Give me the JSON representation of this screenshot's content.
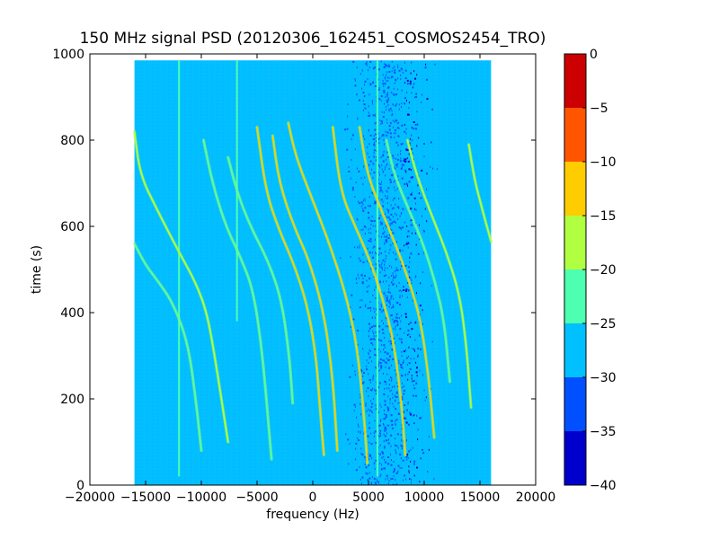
{
  "chart_data": {
    "type": "heatmap",
    "title": "150 MHz signal PSD (20120306_162451_COSMOS2454_TRO)",
    "xlabel": "frequency (Hz)",
    "ylabel": "time (s)",
    "xlim": [
      -20000,
      20000
    ],
    "ylim": [
      0,
      1000
    ],
    "x_ticks": [
      -20000,
      -15000,
      -10000,
      -5000,
      0,
      5000,
      10000,
      15000,
      20000
    ],
    "x_tick_labels": [
      "−20000",
      "−15000",
      "−10000",
      "−5000",
      "0",
      "5000",
      "10000",
      "15000",
      "20000"
    ],
    "y_ticks": [
      0,
      200,
      400,
      600,
      800,
      1000
    ],
    "y_tick_labels": [
      "0",
      "200",
      "400",
      "600",
      "800",
      "1000"
    ],
    "data_extent": {
      "x": [
        -16000,
        16000
      ],
      "y": [
        0,
        985
      ]
    },
    "background_level_db": -28,
    "colorbar": {
      "min": -40,
      "max": 0,
      "ticks": [
        0,
        -5,
        -10,
        -15,
        -20,
        -25,
        -30,
        -35,
        -40
      ],
      "tick_labels": [
        "0",
        "−5",
        "−10",
        "−15",
        "−20",
        "−25",
        "−30",
        "−35",
        "−40"
      ],
      "bands": [
        {
          "from": -40,
          "to": -35,
          "color": "#0000cc"
        },
        {
          "from": -35,
          "to": -30,
          "color": "#0050ff"
        },
        {
          "from": -30,
          "to": -25,
          "color": "#00c0ff"
        },
        {
          "from": -25,
          "to": -20,
          "color": "#4dffb0"
        },
        {
          "from": -20,
          "to": -15,
          "color": "#b0ff40"
        },
        {
          "from": -15,
          "to": -10,
          "color": "#ffcc00"
        },
        {
          "from": -10,
          "to": -5,
          "color": "#ff5500"
        },
        {
          "from": -5,
          "to": 0,
          "color": "#cc0000"
        }
      ]
    },
    "vertical_lines": [
      {
        "x": -12000,
        "y_from": 20,
        "y_to": 985,
        "level_db": -22
      },
      {
        "x": -6800,
        "y_from": 380,
        "y_to": 985,
        "level_db": -22
      },
      {
        "x": 5800,
        "y_from": 20,
        "y_to": 985,
        "level_db": -24
      }
    ],
    "noise_band": {
      "x_from": 2000,
      "x_to": 11500,
      "center": 9500
    },
    "series": [
      {
        "points": [
          [
            -16000,
            820
          ],
          [
            -15500,
            720
          ],
          [
            -14000,
            640
          ],
          [
            -12000,
            540
          ],
          [
            -10500,
            470
          ],
          [
            -9500,
            400
          ],
          [
            -8800,
            300
          ],
          [
            -8200,
            200
          ],
          [
            -7600,
            100
          ]
        ],
        "level_db": -18
      },
      {
        "points": [
          [
            -16000,
            560
          ],
          [
            -15000,
            510
          ],
          [
            -13800,
            470
          ],
          [
            -12500,
            420
          ],
          [
            -11200,
            330
          ],
          [
            -10500,
            200
          ],
          [
            -10000,
            80
          ]
        ],
        "level_db": -20
      },
      {
        "points": [
          [
            -5000,
            830
          ],
          [
            -4200,
            680
          ],
          [
            -3000,
            590
          ],
          [
            -1800,
            520
          ],
          [
            -500,
            420
          ],
          [
            300,
            300
          ],
          [
            700,
            160
          ],
          [
            1000,
            70
          ]
        ],
        "level_db": -12
      },
      {
        "points": [
          [
            -2200,
            840
          ],
          [
            -1500,
            760
          ],
          [
            0,
            660
          ],
          [
            1500,
            560
          ],
          [
            3000,
            440
          ],
          [
            4000,
            320
          ],
          [
            4600,
            160
          ],
          [
            4900,
            50
          ]
        ],
        "level_db": -10
      },
      {
        "points": [
          [
            -3600,
            810
          ],
          [
            -3000,
            700
          ],
          [
            -1700,
            600
          ],
          [
            -300,
            520
          ],
          [
            1000,
            400
          ],
          [
            1800,
            250
          ],
          [
            2200,
            80
          ]
        ],
        "level_db": -14
      },
      {
        "points": [
          [
            1800,
            830
          ],
          [
            2500,
            680
          ],
          [
            3800,
            600
          ],
          [
            5000,
            530
          ],
          [
            6200,
            440
          ],
          [
            7300,
            330
          ],
          [
            8000,
            180
          ],
          [
            8300,
            70
          ]
        ],
        "level_db": -13
      },
      {
        "points": [
          [
            4200,
            830
          ],
          [
            4900,
            720
          ],
          [
            6100,
            640
          ],
          [
            7400,
            560
          ],
          [
            8700,
            470
          ],
          [
            9700,
            380
          ],
          [
            10400,
            250
          ],
          [
            10900,
            110
          ]
        ],
        "level_db": -12
      },
      {
        "points": [
          [
            -9800,
            800
          ],
          [
            -9000,
            700
          ],
          [
            -7800,
            600
          ],
          [
            -6500,
            530
          ],
          [
            -5300,
            450
          ],
          [
            -4500,
            300
          ],
          [
            -4000,
            150
          ],
          [
            -3700,
            60
          ]
        ],
        "level_db": -20
      },
      {
        "points": [
          [
            -7600,
            760
          ],
          [
            -6800,
            680
          ],
          [
            -5600,
            600
          ],
          [
            -4000,
            520
          ],
          [
            -2800,
            430
          ],
          [
            -2100,
            300
          ],
          [
            -1800,
            190
          ]
        ],
        "level_db": -20
      },
      {
        "points": [
          [
            6600,
            800
          ],
          [
            7300,
            720
          ],
          [
            8600,
            640
          ],
          [
            9900,
            560
          ],
          [
            11000,
            470
          ],
          [
            11800,
            380
          ],
          [
            12300,
            240
          ]
        ],
        "level_db": -22
      },
      {
        "points": [
          [
            8500,
            800
          ],
          [
            9300,
            720
          ],
          [
            10600,
            630
          ],
          [
            12000,
            540
          ],
          [
            13200,
            440
          ],
          [
            13800,
            320
          ],
          [
            14200,
            180
          ]
        ],
        "level_db": -18
      },
      {
        "points": [
          [
            14000,
            790
          ],
          [
            14500,
            710
          ],
          [
            15200,
            640
          ],
          [
            16000,
            565
          ]
        ],
        "level_db": -18
      }
    ]
  }
}
